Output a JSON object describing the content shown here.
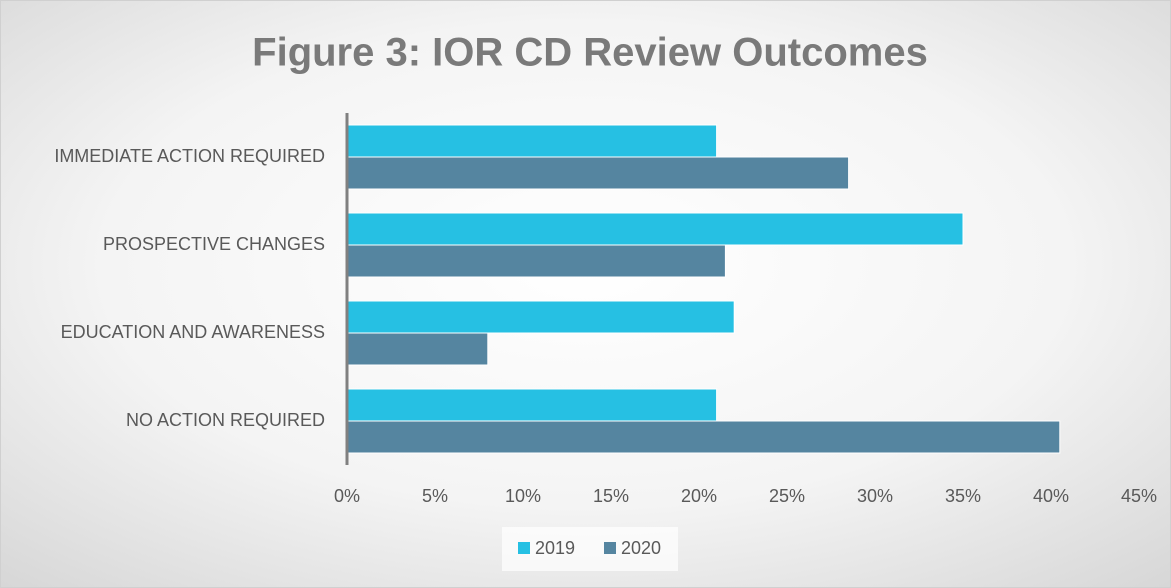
{
  "chart_data": {
    "type": "bar",
    "orientation": "horizontal",
    "title": "Figure 3: IOR CD Review Outcomes",
    "categories": [
      "IMMEDIATE ACTION REQUIRED",
      "PROSPECTIVE CHANGES",
      "EDUCATION AND AWARENESS",
      "NO ACTION REQUIRED"
    ],
    "series": [
      {
        "name": "2019",
        "color": "#26c0e3",
        "values": [
          21,
          35,
          22,
          21
        ]
      },
      {
        "name": "2020",
        "color": "#5585a0",
        "values": [
          28.5,
          21.5,
          8,
          40.5
        ]
      }
    ],
    "xlim": [
      0,
      45
    ],
    "xticks": [
      {
        "value": 0,
        "label": "0%"
      },
      {
        "value": 5,
        "label": "5%"
      },
      {
        "value": 10,
        "label": "10%"
      },
      {
        "value": 15,
        "label": "15%"
      },
      {
        "value": 20,
        "label": "20%"
      },
      {
        "value": 25,
        "label": "25%"
      },
      {
        "value": 30,
        "label": "30%"
      },
      {
        "value": 35,
        "label": "35%"
      },
      {
        "value": 40,
        "label": "40%"
      },
      {
        "value": 45,
        "label": "45%"
      }
    ],
    "grid": false,
    "legend": "bottom"
  }
}
